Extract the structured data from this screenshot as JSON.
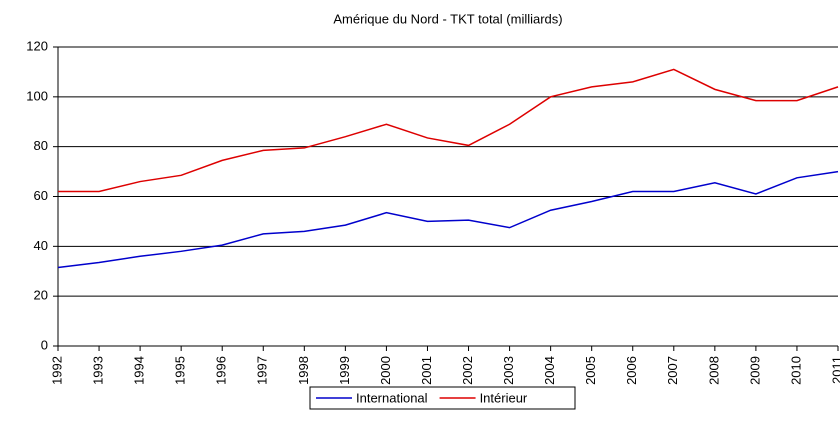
{
  "chart_data": {
    "type": "line",
    "title": "Amérique du Nord - TKT total (milliards)",
    "categories": [
      "1992",
      "1993",
      "1994",
      "1995",
      "1996",
      "1997",
      "1998",
      "1999",
      "2000",
      "2001",
      "2002",
      "2003",
      "2004",
      "2005",
      "2006",
      "2007",
      "2008",
      "2009",
      "2010",
      "2011"
    ],
    "series": [
      {
        "name": "International",
        "color": "#0000cc",
        "values": [
          31.5,
          33.5,
          36,
          38,
          40.5,
          45,
          46,
          48.5,
          53.5,
          50,
          50.5,
          47.5,
          54.5,
          58,
          62,
          62,
          65.5,
          61,
          67.5,
          70
        ]
      },
      {
        "name": "Intérieur",
        "color": "#dd0000",
        "values": [
          62,
          62,
          66,
          68.5,
          74.5,
          78.5,
          79.5,
          84,
          89,
          83.5,
          80.5,
          89,
          100,
          104,
          106,
          111,
          103,
          98.5,
          98.5,
          104
        ]
      }
    ],
    "ylim": [
      0,
      120
    ],
    "yticks": [
      0,
      20,
      40,
      60,
      80,
      100,
      120
    ],
    "grid": true,
    "legend": "bottom"
  }
}
